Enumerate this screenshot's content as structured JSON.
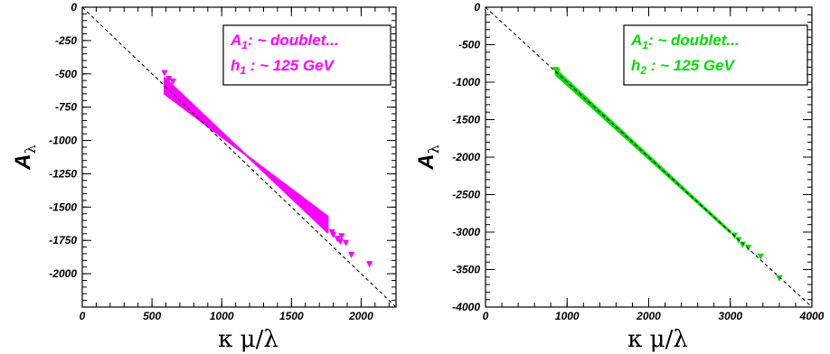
{
  "chart_data": [
    {
      "type": "scatter",
      "xlabel": "κ μ/λ",
      "ylabel_main": "A",
      "ylabel_sub": "λ",
      "xlim": [
        0,
        2250
      ],
      "ylim": [
        -2250,
        0
      ],
      "xticks": [
        "0",
        "500",
        "1000",
        "1500",
        "2000"
      ],
      "yticks": [
        "0",
        "-250",
        "-500",
        "-750",
        "-1000",
        "-1250",
        "-1500",
        "-1750",
        "-2000"
      ],
      "reference_line": {
        "style": "dashed",
        "slope": -1,
        "intercept": 0
      },
      "legend_placement": "top-right",
      "legend": [
        {
          "main": "A",
          "sub": "1",
          "rest": ": ~ doublet..."
        },
        {
          "main": "h",
          "sub": "1",
          "rest": " : ~ 125 GeV"
        }
      ],
      "marker": "triangle-down",
      "color": "#ff00ff",
      "band": {
        "x_start": 590,
        "x_end": 1760,
        "y_upper_start": -530,
        "y_upper_end": -1690,
        "y_lower_start": -650,
        "y_lower_end": -1570
      },
      "points": [
        [
          590,
          -495
        ],
        [
          620,
          -540
        ],
        [
          650,
          -560
        ],
        [
          1790,
          -1690
        ],
        [
          1830,
          -1740
        ],
        [
          1850,
          -1760
        ],
        [
          1890,
          -1770
        ],
        [
          1930,
          -1860
        ],
        [
          2060,
          -1930
        ],
        [
          1800,
          -1710
        ],
        [
          1860,
          -1720
        ]
      ]
    },
    {
      "type": "scatter",
      "xlabel": "κ μ/λ",
      "ylabel_main": "A",
      "ylabel_sub": "λ",
      "xlim": [
        0,
        4000
      ],
      "ylim": [
        -4000,
        0
      ],
      "xticks": [
        "0",
        "1000",
        "2000",
        "3000",
        "4000"
      ],
      "yticks": [
        "0",
        "-500",
        "-1000",
        "-1500",
        "-2000",
        "-2500",
        "-3000",
        "-3500",
        "-4000"
      ],
      "reference_line": {
        "style": "dashed",
        "slope": -1,
        "intercept": 0
      },
      "legend_placement": "top-right",
      "legend": [
        {
          "main": "A",
          "sub": "1",
          "rest": ": ~ doublet..."
        },
        {
          "main": "h",
          "sub": "2",
          "rest": " : ~ 125 GeV"
        }
      ],
      "marker": "triangle-down",
      "color": "#00dd00",
      "band": {
        "x_start": 860,
        "x_end": 3000,
        "y_upper_start": -830,
        "y_upper_end": -2990,
        "y_lower_start": -900,
        "y_lower_end": -3010
      },
      "points": [
        [
          860,
          -840
        ],
        [
          880,
          -860
        ],
        [
          3050,
          -3050
        ],
        [
          3100,
          -3110
        ],
        [
          3150,
          -3170
        ],
        [
          3220,
          -3210
        ],
        [
          3370,
          -3330
        ],
        [
          3600,
          -3620
        ]
      ]
    }
  ]
}
